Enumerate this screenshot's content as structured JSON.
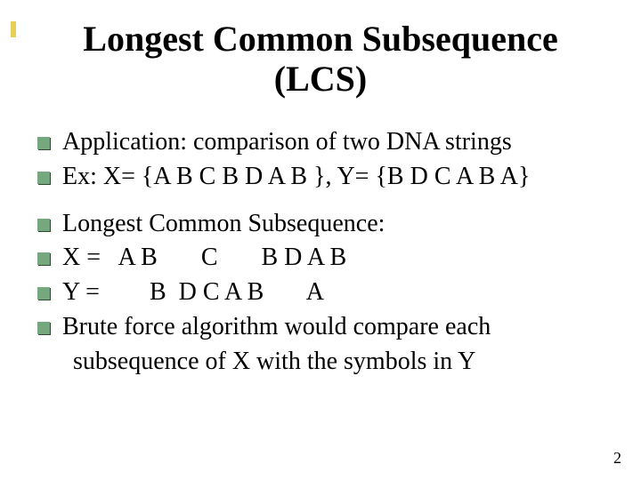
{
  "accent_color": "#e9cf5a",
  "bullet_color": "#75a87f",
  "title": "Longest Common Subsequence (LCS)",
  "lines": {
    "l1": "Application: comparison of two DNA strings",
    "l2": "Ex: X= {A B C B D A B }, Y= {B D C A B A}",
    "l3": "Longest Common Subsequence:",
    "l4": "X =   A B       C       B D A B",
    "l5": "Y =        B  D C A B       A",
    "l6": "Brute force algorithm would compare each",
    "l6b": "subsequence of X with the symbols in Y"
  },
  "page_number": "2"
}
